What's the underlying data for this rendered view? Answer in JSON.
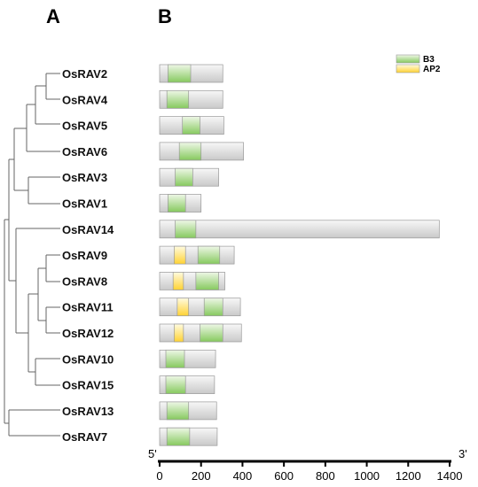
{
  "panels": {
    "a_label": "A",
    "b_label": "B"
  },
  "legend": [
    {
      "label": "B3",
      "color": "green"
    },
    {
      "label": "AP2",
      "color": "yellow"
    }
  ],
  "colors": {
    "b3_light": "#eef7e6",
    "b3_dark": "#86c95e",
    "ap2_light": "#fffbe0",
    "ap2_dark": "#ffd233",
    "protein_light": "#f7f7f7",
    "protein_dark": "#c9c9c9",
    "outline": "#999999"
  },
  "chart_data": {
    "type": "diagram",
    "axis": {
      "min": 0,
      "max": 1400,
      "ticks": [
        0,
        200,
        400,
        600,
        800,
        1000,
        1200,
        1400
      ],
      "left_end": "5'",
      "right_end": "3'"
    },
    "genes": [
      {
        "name": "OsRAV2",
        "length": 305,
        "domains": [
          {
            "type": "B3",
            "start": 40,
            "end": 150
          }
        ]
      },
      {
        "name": "OsRAV4",
        "length": 305,
        "domains": [
          {
            "type": "B3",
            "start": 35,
            "end": 140
          }
        ]
      },
      {
        "name": "OsRAV5",
        "length": 310,
        "domains": [
          {
            "type": "B3",
            "start": 110,
            "end": 195
          }
        ]
      },
      {
        "name": "OsRAV6",
        "length": 405,
        "domains": [
          {
            "type": "B3",
            "start": 95,
            "end": 200
          }
        ]
      },
      {
        "name": "OsRAV3",
        "length": 285,
        "domains": [
          {
            "type": "B3",
            "start": 75,
            "end": 160
          }
        ]
      },
      {
        "name": "OsRAV1",
        "length": 200,
        "domains": [
          {
            "type": "B3",
            "start": 40,
            "end": 125
          }
        ]
      },
      {
        "name": "OsRAV14",
        "length": 1350,
        "domains": [
          {
            "type": "B3",
            "start": 75,
            "end": 175
          }
        ]
      },
      {
        "name": "OsRAV9",
        "length": 360,
        "domains": [
          {
            "type": "AP2",
            "start": 70,
            "end": 125
          },
          {
            "type": "B3",
            "start": 185,
            "end": 290
          }
        ]
      },
      {
        "name": "OsRAV8",
        "length": 315,
        "domains": [
          {
            "type": "AP2",
            "start": 65,
            "end": 115
          },
          {
            "type": "B3",
            "start": 175,
            "end": 285
          }
        ]
      },
      {
        "name": "OsRAV11",
        "length": 390,
        "domains": [
          {
            "type": "AP2",
            "start": 85,
            "end": 140
          },
          {
            "type": "B3",
            "start": 215,
            "end": 305
          }
        ]
      },
      {
        "name": "OsRAV12",
        "length": 395,
        "domains": [
          {
            "type": "AP2",
            "start": 70,
            "end": 115
          },
          {
            "type": "B3",
            "start": 195,
            "end": 305
          }
        ]
      },
      {
        "name": "OsRAV10",
        "length": 270,
        "domains": [
          {
            "type": "B3",
            "start": 30,
            "end": 120
          }
        ]
      },
      {
        "name": "OsRAV15",
        "length": 265,
        "domains": [
          {
            "type": "B3",
            "start": 30,
            "end": 125
          }
        ]
      },
      {
        "name": "OsRAV13",
        "length": 275,
        "domains": [
          {
            "type": "B3",
            "start": 35,
            "end": 140
          }
        ]
      },
      {
        "name": "OsRAV7",
        "length": 278,
        "domains": [
          {
            "type": "B3",
            "start": 35,
            "end": 145
          }
        ]
      }
    ]
  }
}
